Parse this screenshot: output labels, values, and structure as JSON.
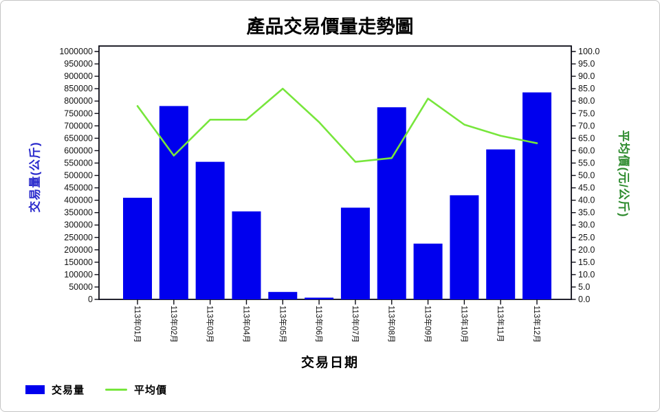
{
  "chart_data": {
    "type": "bar",
    "title": "產品交易價量走勢圖",
    "xlabel": "交易日期",
    "ylabel_left": "交易量(公斤)",
    "ylabel_right": "平均價(元/公斤)",
    "categories": [
      "113年01月",
      "113年02月",
      "113年03月",
      "113年04月",
      "113年05月",
      "113年06月",
      "113年07月",
      "113年08月",
      "113年09月",
      "113年10月",
      "113年11月",
      "113年12月"
    ],
    "series": [
      {
        "name": "交易量",
        "type": "bar",
        "axis": "left",
        "color": "#0000EE",
        "values": [
          410000,
          780000,
          555000,
          355000,
          30000,
          7000,
          370000,
          775000,
          225000,
          420000,
          605000,
          835000
        ]
      },
      {
        "name": "平均價",
        "type": "line",
        "axis": "right",
        "color": "#77E63C",
        "values": [
          78,
          58,
          72.5,
          72.5,
          85,
          71.5,
          55.5,
          57,
          81,
          70.5,
          66,
          63
        ]
      }
    ],
    "ylim_left": [
      0,
      1000000
    ],
    "ylim_right": [
      0,
      100
    ],
    "left_ticks": [
      "0",
      "50000",
      "100000",
      "150000",
      "200000",
      "250000",
      "300000",
      "350000",
      "400000",
      "450000",
      "500000",
      "550000",
      "600000",
      "650000",
      "700000",
      "750000",
      "800000",
      "850000",
      "900000",
      "950000",
      "1000000"
    ],
    "right_ticks": [
      "0.0",
      "5.0",
      "10.0",
      "15.0",
      "20.0",
      "25.0",
      "30.0",
      "35.0",
      "40.0",
      "45.0",
      "50.0",
      "55.0",
      "60.0",
      "65.0",
      "70.0",
      "75.0",
      "80.0",
      "85.0",
      "90.0",
      "95.0",
      "100.0"
    ],
    "grid": "off",
    "legend_position": "bottom-left",
    "axis_title_colors": {
      "left": "#2A2ACC",
      "right": "#2E8B2E"
    }
  }
}
